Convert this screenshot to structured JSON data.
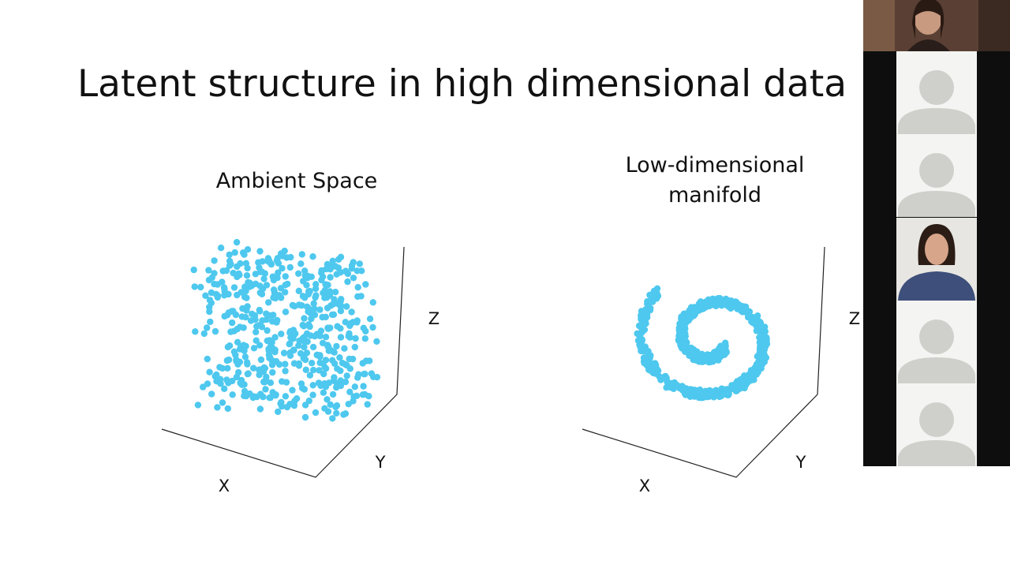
{
  "slide": {
    "title": "Latent structure in high dimensional data",
    "panels": [
      {
        "title_lines": [
          "Ambient Space"
        ],
        "axes": {
          "x": "X",
          "y": "Y",
          "z": "Z"
        }
      },
      {
        "title_lines": [
          "Low-dimensional",
          "manifold"
        ],
        "axes": {
          "x": "X",
          "y": "Y",
          "z": "Z"
        }
      }
    ]
  }
}
